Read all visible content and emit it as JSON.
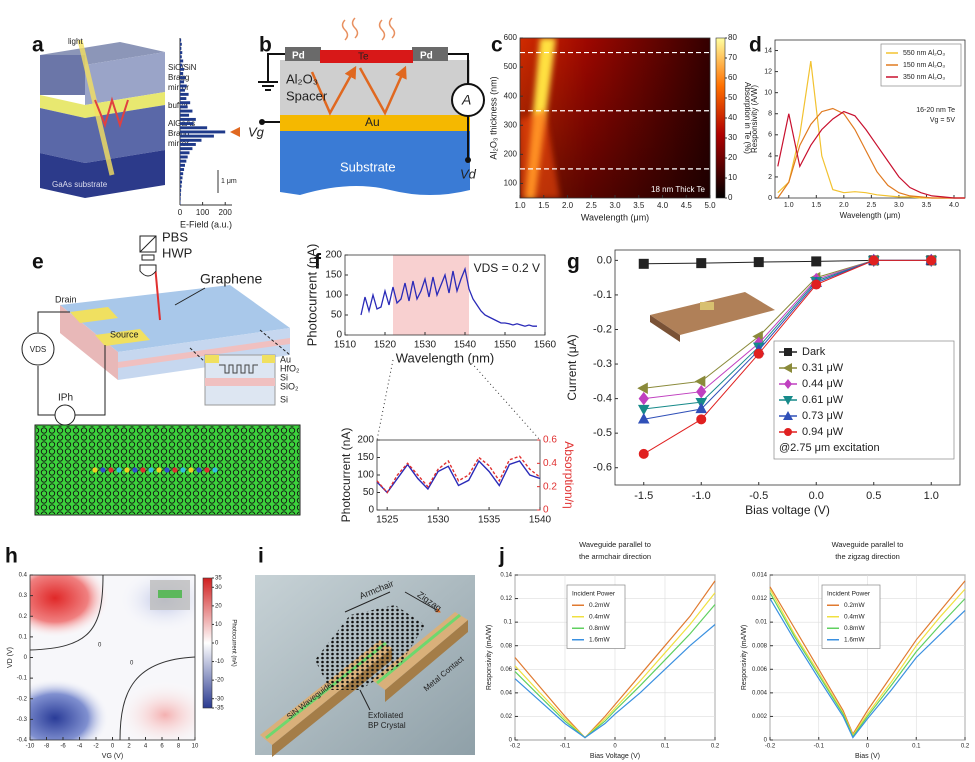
{
  "panel_labels": [
    "a",
    "b",
    "c",
    "d",
    "e",
    "f",
    "g",
    "h",
    "i",
    "j"
  ],
  "diagrams": {
    "a": {
      "light": "light",
      "mirror_top": [
        "SiO/SiN",
        "Bragg",
        "mirror"
      ],
      "buffer": "buffer",
      "mirror_bottom": [
        "AlGaAs",
        "Bragg",
        "mirror"
      ],
      "substrate": "GaAs substrate"
    },
    "b": {
      "pd": [
        "Pd",
        "Pd"
      ],
      "te": "Te",
      "spacer": [
        "Al₂O₃",
        "Spacer"
      ],
      "au": "Au",
      "substrate": "Substrate",
      "meter": "A",
      "gate": "Vg",
      "drain": "Vd"
    },
    "e": {
      "optics": [
        "PBS",
        "HWP"
      ],
      "graphene": "Graphene",
      "drain": "Drain",
      "source": "Source",
      "vds": "VDS",
      "iph": "IPh",
      "layers": [
        "Au",
        "HfO₂",
        "Si",
        "SiO₂",
        "Si"
      ]
    },
    "i": {
      "armchair": "Armchair",
      "zigzag": "Zigzag",
      "contact": "Metal Contact",
      "crystal": [
        "Exfoliated",
        "BP Crystal"
      ],
      "waveguide": "SiN Waveguide"
    }
  },
  "chart_data": [
    {
      "type": "hbar",
      "xlabel": "E-Field (a.u.)",
      "xlim": [
        0,
        230
      ],
      "xticks": [
        0,
        100,
        200
      ],
      "color": "#1f3a8a",
      "scale_label": "1 μm",
      "values": [
        5,
        8,
        6,
        10,
        8,
        14,
        10,
        18,
        14,
        24,
        18,
        30,
        22,
        38,
        28,
        45,
        34,
        55,
        40,
        70,
        60,
        120,
        200,
        150,
        95,
        70,
        55,
        42,
        34,
        28,
        22,
        18,
        14,
        11,
        9,
        7,
        5,
        4,
        3,
        2
      ]
    },
    {
      "type": "heatmap",
      "xlabel": "Wavelength (μm)",
      "ylabel": "Al₂O₃ thickness (nm)",
      "xlim": [
        1,
        5
      ],
      "xticks": [
        {
          "value": 1,
          "label": "1.0"
        },
        1.5,
        {
          "value": 2,
          "label": "2.0"
        },
        2.5,
        {
          "value": 3,
          "label": "3.0"
        },
        3.5,
        {
          "value": 4,
          "label": "4.0"
        },
        4.5,
        {
          "value": 5,
          "label": "5.0"
        }
      ],
      "ylim": [
        50,
        600
      ],
      "yticks": [
        100,
        200,
        300,
        400,
        500,
        600
      ],
      "colorbar_label": "Absorption in Te (%)",
      "colorbar_lim": [
        0,
        80
      ],
      "colorbar_ticks": [
        0,
        10,
        20,
        30,
        40,
        50,
        60,
        70,
        80
      ],
      "annotation": "18 nm Thick Te",
      "dashed_lines": [
        550,
        350,
        150
      ]
    },
    {
      "type": "line",
      "xlabel": "Wavelength (μm)",
      "ylabel": "Responsivity (A/W)",
      "xlim": [
        0.75,
        4.2
      ],
      "xticks": [
        {
          "value": 1,
          "label": "1.0"
        },
        1.5,
        {
          "value": 2,
          "label": "2.0"
        },
        2.5,
        {
          "value": 3,
          "label": "3.0"
        },
        3.5,
        {
          "value": 4,
          "label": "4.0"
        }
      ],
      "ylim": [
        0,
        15
      ],
      "yticks": [
        0,
        2,
        4,
        6,
        8,
        10,
        12,
        14
      ],
      "legend": "upper right",
      "annotations": [
        "16-20 nm Te",
        "Vg = 5V"
      ],
      "x": [
        0.8,
        1.0,
        1.2,
        1.4,
        1.6,
        1.8,
        2.0,
        2.2,
        2.4,
        2.6,
        2.8,
        3.0,
        3.2,
        3.4,
        3.6,
        3.8,
        4.0,
        4.2
      ],
      "series": [
        {
          "name": "550 nm Al₂O₃",
          "color": "#f2c230",
          "values": [
            0.5,
            1.5,
            6,
            13,
            4,
            0.8,
            0.5,
            0.6,
            0.5,
            0.3,
            0.2,
            0.1,
            0.1,
            0,
            0,
            0,
            0,
            0
          ]
        },
        {
          "name": "150 nm Al₂O₃",
          "color": "#e07a20",
          "values": [
            0,
            1.5,
            5,
            7,
            8.2,
            8.5,
            8,
            6.5,
            4.5,
            2.5,
            1.2,
            0.5,
            0.2,
            0.1,
            0,
            0,
            0,
            0
          ]
        },
        {
          "name": "350 nm Al₂O₃",
          "color": "#c8102e",
          "values": [
            3,
            8,
            3,
            5,
            6.5,
            7.5,
            8.2,
            7.8,
            6.5,
            5,
            3.5,
            2,
            1,
            0.5,
            0.2,
            0.1,
            0,
            0
          ]
        }
      ]
    },
    {
      "type": "line",
      "xlabel": "Wavelength (nm)",
      "ylabel": "Photocurrent (nA)",
      "xlim": [
        1510,
        1560
      ],
      "xticks": [
        1510,
        1520,
        1530,
        1540,
        1550,
        1560
      ],
      "ylim": [
        0,
        200
      ],
      "yticks": [
        0,
        50,
        100,
        150,
        200
      ],
      "annotation": "VDS = 0.2 V",
      "highlight": [
        1522,
        1541
      ],
      "highlight_color": "#f8d0d0",
      "x": [
        1514,
        1515,
        1516,
        1517,
        1518,
        1519,
        1520,
        1521,
        1522,
        1523,
        1524,
        1525,
        1526,
        1527,
        1528,
        1529,
        1530,
        1531,
        1532,
        1533,
        1534,
        1535,
        1536,
        1537,
        1538,
        1539,
        1540,
        1541,
        1542,
        1543,
        1544,
        1545,
        1546,
        1547,
        1548,
        1549,
        1550,
        1551,
        1552,
        1553,
        1554,
        1555,
        1556,
        1557,
        1558
      ],
      "series": [
        {
          "color": "#2a2ab8",
          "values": [
            50,
            95,
            60,
            100,
            65,
            70,
            110,
            75,
            120,
            80,
            90,
            130,
            85,
            135,
            90,
            110,
            140,
            95,
            145,
            100,
            125,
            150,
            105,
            160,
            110,
            140,
            165,
            115,
            90,
            75,
            60,
            50,
            45,
            40,
            35,
            30,
            30,
            28,
            25,
            28,
            25,
            22,
            25,
            22,
            22
          ]
        }
      ]
    },
    {
      "type": "line",
      "ylabel": "Photocurrent (nA)",
      "y2label": "Absorption/η",
      "xlim": [
        1524,
        1540
      ],
      "xticks": [
        1525,
        1530,
        1535,
        1540
      ],
      "ylim": [
        0,
        200
      ],
      "yticks": [
        0,
        50,
        100,
        150,
        200
      ],
      "y2lim": [
        0,
        0.6
      ],
      "y2ticks": [
        0,
        0.2,
        0.4,
        0.6
      ],
      "x": [
        1524,
        1525,
        1526,
        1527,
        1528,
        1529,
        1530,
        1531,
        1532,
        1533,
        1534,
        1535,
        1536,
        1537,
        1538,
        1539,
        1540
      ],
      "series": [
        {
          "color": "#2a2ab8",
          "values": [
            80,
            50,
            90,
            130,
            90,
            60,
            110,
            125,
            70,
            85,
            140,
            110,
            70,
            130,
            140,
            100,
            90
          ]
        },
        {
          "color": "#e03030",
          "style": "dashed",
          "axis": "y2",
          "values": [
            0.25,
            0.15,
            0.3,
            0.4,
            0.3,
            0.2,
            0.35,
            0.42,
            0.25,
            0.3,
            0.45,
            0.38,
            0.25,
            0.43,
            0.46,
            0.35,
            0.28
          ]
        }
      ]
    },
    {
      "type": "line",
      "xlabel": "Bias voltage (V)",
      "ylabel": "Current (μA)",
      "xlim": [
        -1.75,
        1.25
      ],
      "xticks": [
        -1.5,
        {
          "value": -1,
          "label": "-1.0"
        },
        -0.5,
        {
          "value": 0,
          "label": "0.0"
        },
        0.5,
        {
          "value": 1,
          "label": "1.0"
        }
      ],
      "ylim": [
        -0.65,
        0.03
      ],
      "yticks": [
        {
          "value": 0,
          "label": "0.0"
        },
        -0.1,
        -0.2,
        -0.3,
        -0.4,
        -0.5,
        -0.6
      ],
      "legend": "lower right",
      "legend_note": "@2.75 μm excitation",
      "x": [
        -1.5,
        -1,
        -0.5,
        0,
        0.5,
        1
      ],
      "series": [
        {
          "name": "Dark",
          "color": "#222222",
          "marker": "square",
          "values": [
            -0.01,
            -0.008,
            -0.005,
            -0.003,
            0,
            0
          ]
        },
        {
          "name": "0.31 μW",
          "color": "#8a8a3a",
          "marker": "triangle-left",
          "values": [
            -0.37,
            -0.35,
            -0.22,
            -0.05,
            0,
            0
          ]
        },
        {
          "name": "0.44 μW",
          "color": "#c040c0",
          "marker": "diamond",
          "values": [
            -0.4,
            -0.38,
            -0.24,
            -0.055,
            0,
            0
          ]
        },
        {
          "name": "0.61 μW",
          "color": "#178a8a",
          "marker": "triangle-down",
          "values": [
            -0.43,
            -0.41,
            -0.25,
            -0.06,
            0,
            0
          ]
        },
        {
          "name": "0.73 μW",
          "color": "#3050b8",
          "marker": "triangle-up",
          "values": [
            -0.46,
            -0.43,
            -0.26,
            -0.065,
            0,
            0
          ]
        },
        {
          "name": "0.94 μW",
          "color": "#e02020",
          "marker": "circle",
          "values": [
            -0.56,
            -0.46,
            -0.27,
            -0.07,
            0,
            0
          ]
        }
      ]
    },
    {
      "type": "heatmap",
      "xlabel": "VG (V)",
      "ylabel": "VD (V)",
      "xlim": [
        -10,
        10
      ],
      "xticks": [
        -10,
        -8,
        -6,
        -4,
        -2,
        0,
        2,
        4,
        6,
        8,
        10
      ],
      "ylim": [
        -0.4,
        0.4
      ],
      "yticks": [
        -0.4,
        -0.3,
        -0.2,
        -0.1,
        0,
        0.1,
        0.2,
        0.3,
        0.4
      ],
      "colorbar_label": "Photocurrent (nA)",
      "colorbar_lim": [
        -35,
        35
      ],
      "colorbar_ticks": [
        -35,
        -30,
        -20,
        -10,
        0,
        10,
        20,
        30,
        35
      ],
      "contour_labels": [
        "0",
        "0"
      ]
    },
    {
      "type": "line",
      "title": [
        "Waveguide parallel to",
        "the armchair direction"
      ],
      "xlabel": "Bias Voltage (V)",
      "ylabel": "Responsivity (mA/W)",
      "xlim": [
        -0.2,
        0.2
      ],
      "xticks": [
        -0.2,
        -0.1,
        0,
        0.1,
        0.2
      ],
      "ylim": [
        0,
        0.14
      ],
      "yticks": [
        0,
        0.02,
        0.04,
        0.06,
        0.08,
        0.1,
        0.12,
        0.14
      ],
      "legend": "upper left",
      "legend_title": "Incident Power",
      "grid": true,
      "x": [
        -0.2,
        -0.15,
        -0.1,
        -0.06,
        -0.02,
        0,
        0.05,
        0.1,
        0.15,
        0.2
      ],
      "series": [
        {
          "name": "0.2mW",
          "color": "#e07a30",
          "values": [
            0.07,
            0.045,
            0.02,
            0.002,
            0.02,
            0.03,
            0.055,
            0.08,
            0.105,
            0.135
          ]
        },
        {
          "name": "0.4mW",
          "color": "#f0e040",
          "values": [
            0.063,
            0.04,
            0.018,
            0.002,
            0.018,
            0.027,
            0.05,
            0.074,
            0.098,
            0.125
          ]
        },
        {
          "name": "0.8mW",
          "color": "#60d060",
          "values": [
            0.058,
            0.037,
            0.016,
            0.002,
            0.016,
            0.025,
            0.046,
            0.068,
            0.09,
            0.115
          ]
        },
        {
          "name": "1.6mW",
          "color": "#3a90e0",
          "values": [
            0.052,
            0.033,
            0.014,
            0.002,
            0.014,
            0.022,
            0.04,
            0.06,
            0.08,
            0.098
          ]
        }
      ]
    },
    {
      "type": "line",
      "title": [
        "Waveguide parallel to",
        "the zigzag direction"
      ],
      "xlabel": "Bias (V)",
      "ylabel": "Responsivity (mA/W)",
      "xlim": [
        -0.2,
        0.2
      ],
      "xticks": [
        -0.2,
        -0.1,
        0,
        0.1,
        0.2
      ],
      "ylim": [
        0,
        0.014
      ],
      "yticks": [
        0,
        0.002,
        0.004,
        0.006,
        0.008,
        0.01,
        0.012,
        0.014
      ],
      "legend": "upper left",
      "legend_title": "Incident Power",
      "grid": true,
      "x": [
        -0.2,
        -0.15,
        -0.1,
        -0.05,
        -0.03,
        0,
        0.05,
        0.1,
        0.15,
        0.2
      ],
      "series": [
        {
          "name": "0.2mW",
          "color": "#e07a30",
          "values": [
            0.013,
            0.0095,
            0.006,
            0.0025,
            0.0005,
            0.0025,
            0.0055,
            0.0085,
            0.011,
            0.0135
          ]
        },
        {
          "name": "0.4mW",
          "color": "#f0e040",
          "values": [
            0.0128,
            0.009,
            0.0057,
            0.0023,
            0.0004,
            0.0022,
            0.005,
            0.008,
            0.0105,
            0.0128
          ]
        },
        {
          "name": "0.8mW",
          "color": "#60d060",
          "values": [
            0.0125,
            0.0088,
            0.0055,
            0.0022,
            0.0003,
            0.002,
            0.0047,
            0.0075,
            0.0098,
            0.012
          ]
        },
        {
          "name": "1.6mW",
          "color": "#3a90e0",
          "values": [
            0.012,
            0.0085,
            0.0052,
            0.002,
            0.0002,
            0.0018,
            0.0043,
            0.007,
            0.009,
            0.011
          ]
        }
      ]
    }
  ]
}
